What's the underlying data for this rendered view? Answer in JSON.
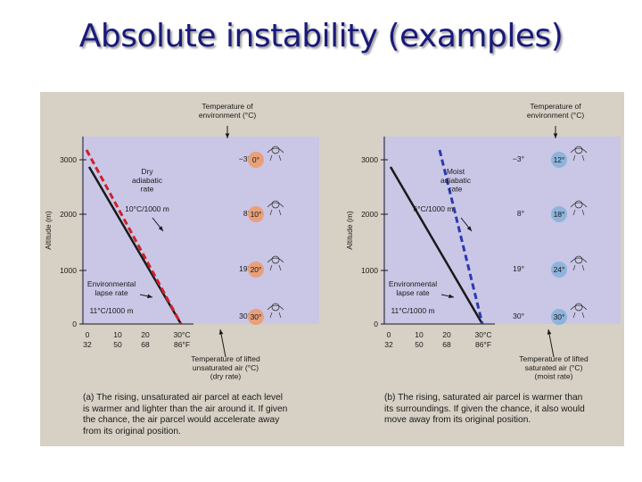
{
  "slide": {
    "title": "Absolute instability (examples)"
  },
  "colors": {
    "title": "#1a1a7a",
    "panel_bg": "#c9c6e6",
    "environment_line": "#1a1a1a",
    "dry_parcel_line": "#d0202a",
    "moist_parcel_line": "#2a3ab0",
    "bubble_warm": "#e8a07a",
    "bubble_cool": "#8fb4dc"
  },
  "panel_a": {
    "env_header": "Temperature of\nenvironment (°C)",
    "y_axis_label": "Altitude (m)",
    "y_ticks": [
      "3000",
      "2000",
      "1000",
      "0"
    ],
    "env_temps": [
      "−3°",
      "8°",
      "19°",
      "30°"
    ],
    "parcel_temps": [
      "0°",
      "10°",
      "20°",
      "30°"
    ],
    "rate_label": "Dry\nadiabatic\nrate",
    "rate_value": "10°C/1000 m",
    "env_label": "Environmental\nlapse rate",
    "env_value": "11°C/1000 m",
    "x_ticks_c": [
      "0",
      "10",
      "20",
      "30°C"
    ],
    "x_ticks_f": [
      "32",
      "50",
      "68",
      "86°F"
    ],
    "x_caption": "Temperature of lifted\nunsaturated air (°C)\n(dry rate)",
    "caption": "(a)  The rising, unsaturated air parcel at each level\nis warmer and lighter than the air around it. If given\nthe chance, the air parcel would accelerate away\nfrom its original position."
  },
  "panel_b": {
    "env_header": "Temperature of\nenvironment (°C)",
    "y_axis_label": "Altitude (m)",
    "y_ticks": [
      "3000",
      "2000",
      "1000",
      "0"
    ],
    "env_temps": [
      "−3°",
      "8°",
      "19°",
      "30°"
    ],
    "parcel_temps": [
      "12°",
      "18°",
      "24°",
      "30°"
    ],
    "rate_label": "Moist\nadiabatic\nrate",
    "rate_value": "6°C/1000 m",
    "env_label": "Environmental\nlapse rate",
    "env_value": "11°C/1000 m",
    "x_ticks_c": [
      "0",
      "10",
      "20",
      "30°C"
    ],
    "x_ticks_f": [
      "32",
      "50",
      "68",
      "86°F"
    ],
    "x_caption": "Temperature of lifted\nsaturated air (°C)\n(moist rate)",
    "caption": "(b)  The rising, saturated air parcel is warmer than\nits surroundings. If given the chance, it also would\nmove away from its original position."
  }
}
